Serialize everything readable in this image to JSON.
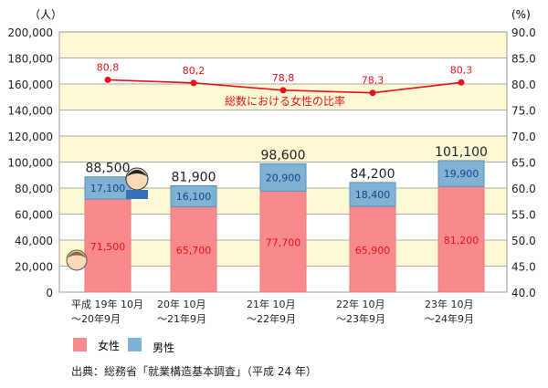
{
  "chart_data": {
    "type": "bar",
    "stacked": true,
    "categories": [
      [
        "平成 19年 10月",
        "～20年9月"
      ],
      [
        "20年 10月",
        "～21年9月"
      ],
      [
        "21年 10月",
        "～22年9月"
      ],
      [
        "22年 10月",
        "～23年9月"
      ],
      [
        "23年 10月",
        "～24年9月"
      ]
    ],
    "series": [
      {
        "name": "女性",
        "values": [
          71500,
          65700,
          77700,
          65900,
          81200
        ],
        "labels": [
          "71,500",
          "65,700",
          "77,700",
          "65,900",
          "81,200"
        ],
        "color": "#f88a8e"
      },
      {
        "name": "男性",
        "values": [
          17100,
          16100,
          20900,
          18400,
          19900
        ],
        "labels": [
          "17,100",
          "16,100",
          "20,900",
          "18,400",
          "19,900"
        ],
        "color": "#7fb3d3"
      }
    ],
    "totals": [
      "88,500",
      "81,900",
      "98,600",
      "84,200",
      "101,100"
    ],
    "line": {
      "name": "総数における女性の比率",
      "values": [
        80.8,
        80.2,
        78.8,
        78.3,
        80.3
      ],
      "labels": [
        "80,8",
        "80,2",
        "78,8",
        "78,3",
        "80,3"
      ],
      "color": "#e8111a",
      "axis": "right"
    },
    "ylabel": "（人）",
    "ylabel_right": "(%)",
    "ylim": [
      0,
      200000
    ],
    "ylim_right": [
      40,
      90
    ],
    "yticks": [
      "0",
      "20,000",
      "40,000",
      "60,000",
      "80,000",
      "100,000",
      "120,000",
      "140,000",
      "160,000",
      "180,000",
      "200,000"
    ],
    "yticks_right": [
      "40.0",
      "45.0",
      "50.0",
      "55.0",
      "60.0",
      "65.0",
      "70.0",
      "75.0",
      "80.0",
      "85.0",
      "90.0"
    ],
    "band_color": "#fdf9d4",
    "legend_position": "bottom-left",
    "source": "出典：総務省「就業構造基本調査」（平成 24 年）"
  }
}
